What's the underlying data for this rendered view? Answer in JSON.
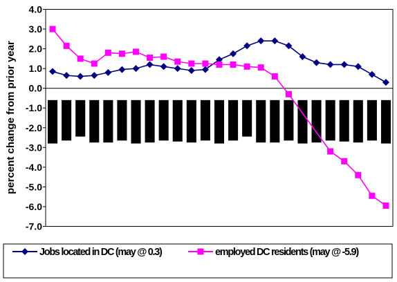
{
  "chart_data": {
    "type": "line",
    "title": "",
    "xlabel": "",
    "ylabel": "percent change from prior year",
    "ylim": [
      -7.0,
      4.0
    ],
    "yticks": [
      4.0,
      3.0,
      2.0,
      1.0,
      0.0,
      -1.0,
      -2.0,
      -3.0,
      -4.0,
      -5.0,
      -6.0,
      -7.0
    ],
    "ytick_labels": [
      "4.0",
      "3.0",
      "2.0",
      "1.0",
      "0.0",
      "-1.0",
      "-2.0",
      "-3.0",
      "-4.0",
      "-5.0",
      "-6.0",
      "-7.0"
    ],
    "grid": false,
    "legend_position": "bottom",
    "series": [
      {
        "name": "Jobs located in DC (may @ 0.3)",
        "color": "#000080",
        "marker": "diamond",
        "values": [
          0.85,
          0.65,
          0.6,
          0.65,
          0.8,
          0.95,
          1.0,
          1.2,
          1.1,
          1.0,
          0.9,
          0.95,
          1.45,
          1.75,
          2.15,
          2.4,
          2.4,
          2.15,
          1.6,
          1.3,
          1.2,
          1.2,
          1.1,
          0.7,
          0.3
        ]
      },
      {
        "name": "employed DC residents (may @ -5.9)",
        "color": "#FF00FF",
        "marker": "square",
        "values": [
          3.0,
          2.15,
          1.5,
          1.25,
          1.8,
          1.75,
          1.85,
          1.55,
          1.6,
          1.35,
          1.25,
          1.25,
          1.2,
          1.2,
          1.1,
          1.05,
          0.6,
          -0.3,
          null,
          null,
          -3.2,
          -3.7,
          -4.4,
          -5.45,
          -5.95
        ]
      }
    ],
    "bars": {
      "color": "#000000",
      "top": -0.6,
      "bottoms": [
        -2.8,
        -2.65,
        -2.45,
        -2.75,
        -2.75,
        -2.65,
        -2.8,
        -2.75,
        -2.65,
        -2.7,
        -2.75,
        -2.65,
        -2.8,
        -2.65,
        -2.45,
        -2.75,
        -2.75,
        -2.65,
        -2.8,
        -2.75,
        -2.65,
        -2.7,
        -2.75,
        -2.65,
        -2.8
      ]
    }
  }
}
